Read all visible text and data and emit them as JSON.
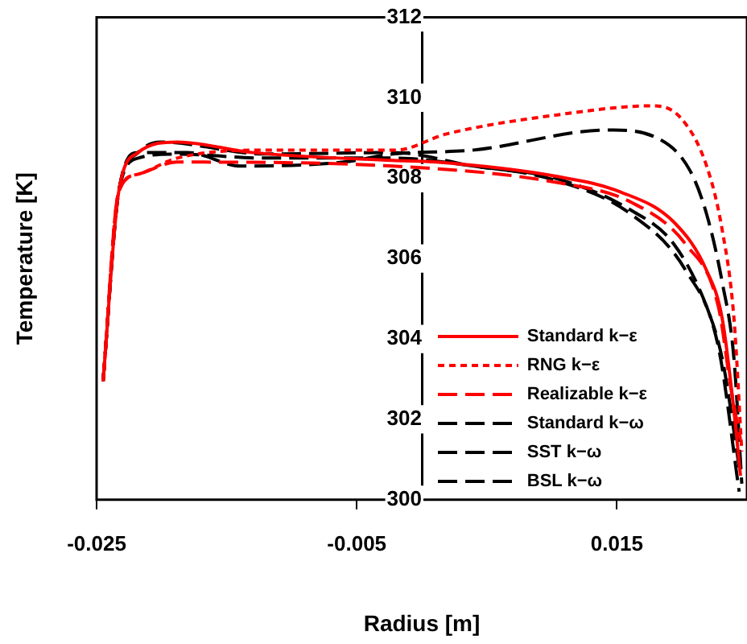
{
  "chart_data": {
    "type": "line",
    "xlabel": "Radius [m]",
    "ylabel": "Temperature [K]",
    "xlim": [
      -0.025,
      0.025
    ],
    "xticks": [
      -0.025,
      -0.005,
      0.015
    ],
    "ylim": [
      300,
      312
    ],
    "yticks": [
      300,
      302,
      304,
      306,
      308,
      310,
      312
    ],
    "grid": false,
    "legend": "bottom right",
    "marker": "none",
    "series": [
      {
        "name": "Standard k−ε",
        "color": "#ff0000",
        "line_style": "solid",
        "x": [
          -0.0245,
          -0.0233,
          -0.0218,
          -0.0188,
          -0.0131,
          -0.00225,
          0.0011,
          0.01025,
          0.01525,
          0.0194,
          0.0219,
          0.0231,
          0.024,
          0.0245
        ],
        "values": [
          302.95,
          307.66,
          308.64,
          308.9,
          308.64,
          308.44,
          308.4,
          308.05,
          307.66,
          306.9,
          305.7,
          304.5,
          302.2,
          300.6
        ]
      },
      {
        "name": "RNG k−ε",
        "color": "#ff0000",
        "line_style": "dotted",
        "x": [
          -0.0245,
          -0.0233,
          -0.0218,
          -0.0188,
          -0.012,
          -0.002,
          0.0019,
          0.0103,
          0.0178,
          0.0199,
          0.0219,
          0.0231,
          0.024,
          0.0246
        ],
        "values": [
          302.95,
          307.66,
          308.1,
          308.5,
          308.7,
          308.7,
          309.1,
          309.57,
          309.8,
          309.5,
          308.3,
          306.7,
          304.5,
          301.2
        ]
      },
      {
        "name": "Realizable k−ε",
        "color": "#ff0000",
        "line_style": "dashed",
        "x": [
          -0.0245,
          -0.0233,
          -0.0218,
          -0.0188,
          -0.00225,
          0.01025,
          0.0161,
          0.0203,
          0.0228,
          0.0238,
          0.0245
        ],
        "values": [
          302.95,
          307.66,
          308.1,
          308.4,
          308.3,
          307.9,
          307.4,
          306.35,
          304.8,
          302.7,
          301.5
        ]
      },
      {
        "name": "Standard k−ω",
        "color": "#000000",
        "line_style": "dashed",
        "x": [
          -0.0245,
          -0.0233,
          -0.0218,
          -0.0201,
          -0.012,
          -0.00225,
          0.004,
          0.01025,
          0.0161,
          0.0194,
          0.0219,
          0.0231,
          0.0245
        ],
        "values": [
          302.95,
          307.66,
          308.64,
          308.9,
          308.6,
          308.64,
          308.3,
          308.0,
          307.2,
          306.35,
          304.8,
          303.5,
          300.6
        ]
      },
      {
        "name": "SST k−ω",
        "color": "#000000",
        "line_style": "dashed",
        "x": [
          -0.0245,
          -0.0233,
          -0.0218,
          -0.018,
          -0.0139,
          -0.006,
          -0.00225,
          0.004,
          0.0144,
          0.0181,
          0.0206,
          0.0219,
          0.0231,
          0.024,
          0.0246
        ],
        "values": [
          302.95,
          307.66,
          308.64,
          308.64,
          308.3,
          308.4,
          308.6,
          308.7,
          309.2,
          309.0,
          308.2,
          307.1,
          305.4,
          303.5,
          300.4
        ]
      },
      {
        "name": "BSL k−ω",
        "color": "#000000",
        "line_style": "dashed",
        "x": [
          -0.0245,
          -0.0233,
          -0.0218,
          -0.019,
          -0.012,
          -0.00225,
          0.004,
          0.01025,
          0.0161,
          0.0203,
          0.0228,
          0.0244
        ],
        "values": [
          302.95,
          307.66,
          308.5,
          308.6,
          308.5,
          308.5,
          308.3,
          307.95,
          307.1,
          305.7,
          303.8,
          300.2
        ]
      }
    ]
  }
}
